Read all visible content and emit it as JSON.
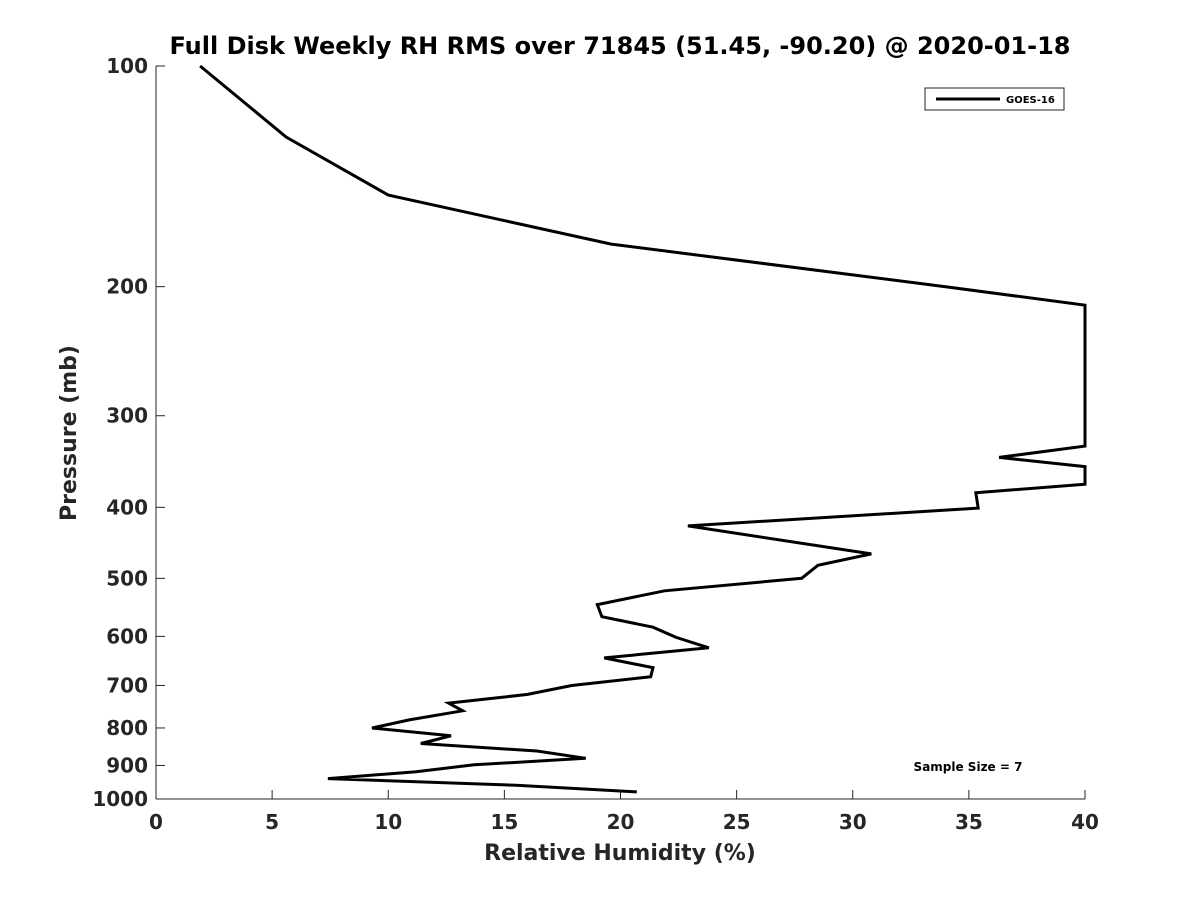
{
  "chart_data": {
    "type": "line",
    "title": "Full Disk Weekly RH RMS over 71845 (51.45, -90.20) @ 2020-01-18",
    "xlabel": "Relative Humidity (%)",
    "ylabel": "Pressure (mb)",
    "xlim": [
      0,
      40
    ],
    "ylim": [
      100,
      1000
    ],
    "y_scale": "log",
    "y_reversed": true,
    "x_ticks": [
      0,
      5,
      10,
      15,
      20,
      25,
      30,
      35,
      40
    ],
    "y_ticks": [
      100,
      200,
      300,
      400,
      500,
      600,
      700,
      800,
      900,
      1000
    ],
    "grid": false,
    "legend_position": "top-right",
    "annotation": "Sample Size = 7",
    "series": [
      {
        "name": "GOES-16",
        "color": "#000000",
        "points": [
          [
            1.9,
            100
          ],
          [
            5.6,
            125
          ],
          [
            10.0,
            150
          ],
          [
            19.6,
            175
          ],
          [
            34.0,
            200
          ],
          [
            40.0,
            212
          ],
          [
            40.0,
            330
          ],
          [
            36.3,
            342
          ],
          [
            40.0,
            352
          ],
          [
            40.0,
            372
          ],
          [
            35.3,
            382
          ],
          [
            35.4,
            401
          ],
          [
            22.9,
            424
          ],
          [
            30.8,
            463
          ],
          [
            28.5,
            480
          ],
          [
            27.8,
            500
          ],
          [
            21.9,
            520
          ],
          [
            19.0,
            543
          ],
          [
            19.2,
            564
          ],
          [
            21.4,
            583
          ],
          [
            22.4,
            602
          ],
          [
            23.8,
            622
          ],
          [
            19.3,
            642
          ],
          [
            21.4,
            662
          ],
          [
            21.3,
            681
          ],
          [
            17.9,
            700
          ],
          [
            16.0,
            720
          ],
          [
            12.6,
            740
          ],
          [
            13.2,
            758
          ],
          [
            10.9,
            780
          ],
          [
            9.3,
            800
          ],
          [
            12.7,
            820
          ],
          [
            11.4,
            840
          ],
          [
            16.4,
            860
          ],
          [
            18.5,
            880
          ],
          [
            13.7,
            898
          ],
          [
            11.2,
            918
          ],
          [
            7.4,
            938
          ],
          [
            15.5,
            958
          ],
          [
            20.7,
            978
          ]
        ]
      }
    ]
  }
}
